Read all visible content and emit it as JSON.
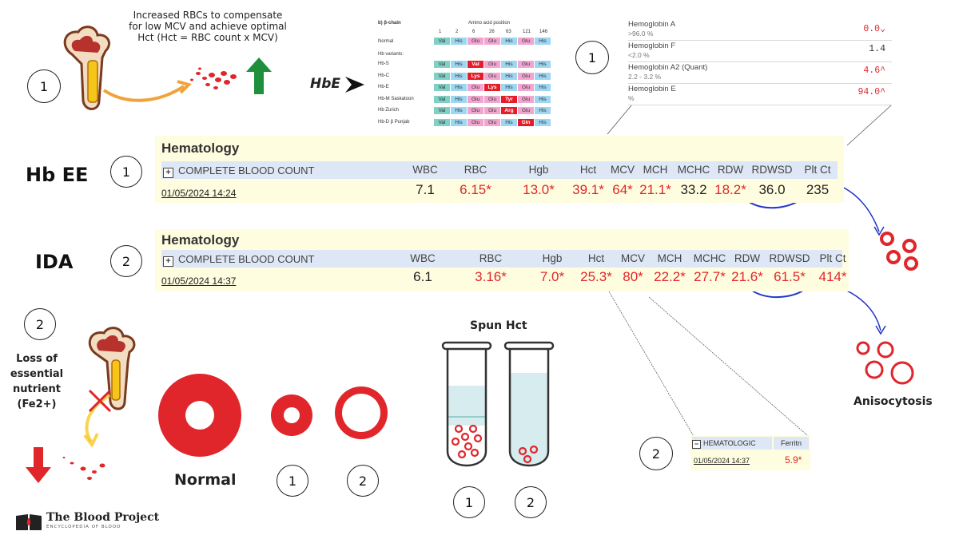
{
  "top_caption": [
    "Increased RBCs to compensate",
    "for low MCV and achieve optimal",
    "Hct  (Hct = RBC count x MCV)"
  ],
  "hbe_label": "HbE",
  "beta_chain": {
    "title": "b) β-chain",
    "header": "Amino acid position",
    "positions": [
      "1",
      "2",
      "6",
      "26",
      "63",
      "121",
      "146"
    ],
    "normal_label": "Normal",
    "normal": [
      "Val",
      "His",
      "Glu",
      "Glu",
      "His",
      "Glu",
      "His"
    ],
    "variants_label": "Hb variants:",
    "variants": [
      {
        "name": "Hb-S",
        "aa": [
          "Val",
          "His",
          "Val",
          "Glu",
          "His",
          "Glu",
          "His"
        ],
        "mut": 2
      },
      {
        "name": "Hb-C",
        "aa": [
          "Val",
          "His",
          "Lys",
          "Glu",
          "His",
          "Glu",
          "His"
        ],
        "mut": 2
      },
      {
        "name": "Hb-E",
        "aa": [
          "Val",
          "His",
          "Glu",
          "Lys",
          "His",
          "Glu",
          "His"
        ],
        "mut": 3
      },
      {
        "name": "Hb-M Saskatoon",
        "aa": [
          "Val",
          "His",
          "Glu",
          "Glu",
          "Tyr",
          "Glu",
          "His"
        ],
        "mut": 4
      },
      {
        "name": "Hb Zurich",
        "aa": [
          "Val",
          "His",
          "Glu",
          "Glu",
          "Arg",
          "Glu",
          "His"
        ],
        "mut": 4
      },
      {
        "name": "Hb-D β Punjab",
        "aa": [
          "Val",
          "His",
          "Glu",
          "Glu",
          "His",
          "Gln",
          "His"
        ],
        "mut": 5
      }
    ]
  },
  "hemoglobin_fractions": [
    {
      "name": "Hemoglobin A",
      "ref": ">96.0 %",
      "value": "0.0",
      "flag": "⌄"
    },
    {
      "name": "Hemoglobin F",
      "ref": "<2.0 %",
      "value": "1.4",
      "flag": ""
    },
    {
      "name": "Hemoglobin A2 (Quant)",
      "ref": "2.2 - 3.2 %",
      "value": "4.6",
      "flag": "^"
    },
    {
      "name": "Hemoglobin E",
      "ref": "%",
      "value": "94.0",
      "flag": "^"
    }
  ],
  "hbee": {
    "label": "Hb EE",
    "circle": "1",
    "panel_title": "Hematology",
    "section": "COMPLETE BLOOD COUNT",
    "date": "01/05/2024 14:24",
    "headers": [
      "WBC",
      "RBC",
      "Hgb",
      "Hct",
      "MCV",
      "MCH",
      "MCHC",
      "RDW",
      "RDWSD",
      "Plt Ct"
    ],
    "values": [
      "7.1",
      "6.15*",
      "13.0*",
      "39.1*",
      "64*",
      "21.1*",
      "33.2",
      "18.2*",
      "36.0",
      "235"
    ],
    "abnormal": [
      false,
      true,
      true,
      true,
      true,
      true,
      false,
      true,
      false,
      false
    ]
  },
  "ida": {
    "label": "IDA",
    "circle": "2",
    "panel_title": "Hematology",
    "section": "COMPLETE BLOOD COUNT",
    "date": "01/05/2024 14:37",
    "headers": [
      "WBC",
      "RBC",
      "Hgb",
      "Hct",
      "MCV",
      "MCH",
      "MCHC",
      "RDW",
      "RDWSD",
      "Plt Ct"
    ],
    "values": [
      "6.1",
      "3.16*",
      "7.0*",
      "25.3*",
      "80*",
      "22.2*",
      "27.7*",
      "21.6*",
      "61.5*",
      "414*"
    ],
    "abnormal": [
      false,
      true,
      true,
      true,
      true,
      true,
      true,
      true,
      true,
      true
    ]
  },
  "left_note": {
    "circle": "2",
    "lines": [
      "Loss of",
      "essential",
      "nutrient",
      "(Fe2+)"
    ]
  },
  "cells": {
    "normal_label": "Normal",
    "labels": [
      "1",
      "2"
    ]
  },
  "spun_hct": {
    "title": "Spun Hct",
    "labels": [
      "1",
      "2"
    ]
  },
  "anisocytosis_label": "Anisocytosis",
  "ferritin": {
    "circle": "2",
    "section": "HEMATOLOGIC",
    "header": "Ferritn",
    "date": "01/05/2024 14:37",
    "value": "5.9*"
  },
  "top_circle_left": "1",
  "top_circle_right": "1",
  "logo": {
    "name": "The Blood Project",
    "tagline": "ENCYCLOPEDIA OF BLOOD"
  },
  "colors": {
    "red": "#e0262b",
    "green": "#1e8f3a",
    "blue": "#2236c7",
    "orange": "#f0a33a",
    "panel_bg": "#fffde0",
    "header_bg": "#dde7f5"
  }
}
